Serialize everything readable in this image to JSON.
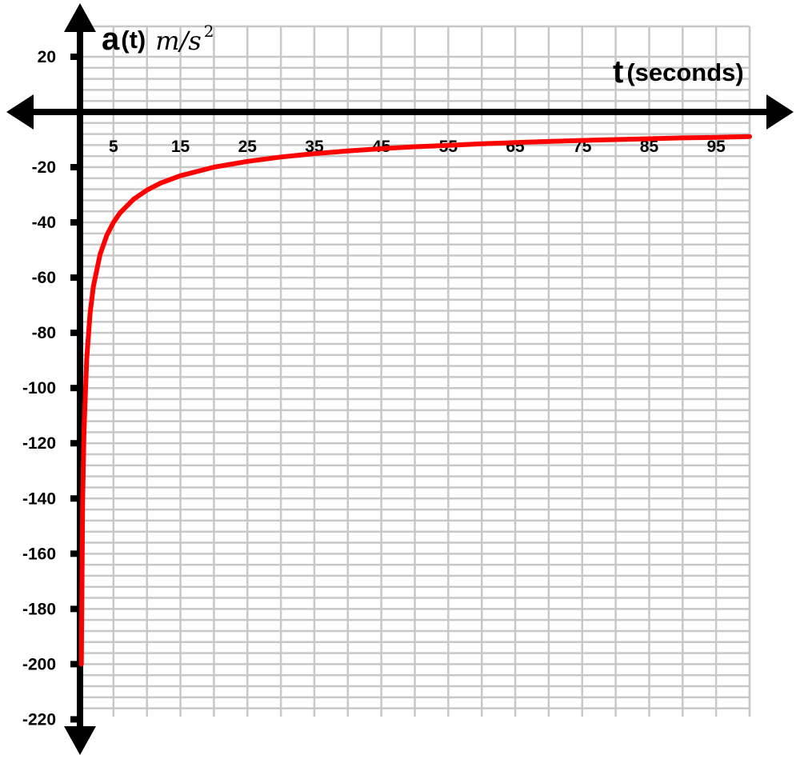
{
  "chart_data": {
    "type": "line",
    "y_axis_title": {
      "main": "a",
      "sub": "(t)",
      "unit": "m/s",
      "unit_exponent": "2"
    },
    "x_axis_title": {
      "main": "t",
      "sub": "(seconds)"
    },
    "xlim": [
      0,
      100
    ],
    "ylim": [
      -220,
      20
    ],
    "x_ticks": [
      5,
      15,
      25,
      35,
      45,
      55,
      65,
      75,
      85,
      95
    ],
    "y_ticks": [
      20,
      -20,
      -40,
      -60,
      -80,
      -100,
      -120,
      -140,
      -160,
      -180,
      -200,
      -220
    ],
    "x_gridline_step": 5,
    "y_gridline_step": 4,
    "grid": true,
    "series": [
      {
        "color": "#ff0000",
        "x": [
          0.2,
          0.4,
          0.6,
          1,
          1.5,
          2,
          3,
          4,
          5,
          6,
          8,
          10,
          12,
          15,
          20,
          25,
          30,
          35,
          40,
          45,
          50,
          55,
          60,
          65,
          70,
          75,
          80,
          85,
          90,
          95,
          100
        ],
        "y": [
          -200,
          -141.4,
          -115.5,
          -89.4,
          -73,
          -63.2,
          -51.6,
          -44.7,
          -40,
          -36.5,
          -31.6,
          -28.3,
          -25.8,
          -23.1,
          -20,
          -17.9,
          -16.3,
          -15.1,
          -14.1,
          -13.3,
          -12.6,
          -12.1,
          -11.5,
          -11.1,
          -10.7,
          -10.3,
          -10,
          -9.7,
          -9.4,
          -9.2,
          -8.9
        ]
      }
    ]
  }
}
